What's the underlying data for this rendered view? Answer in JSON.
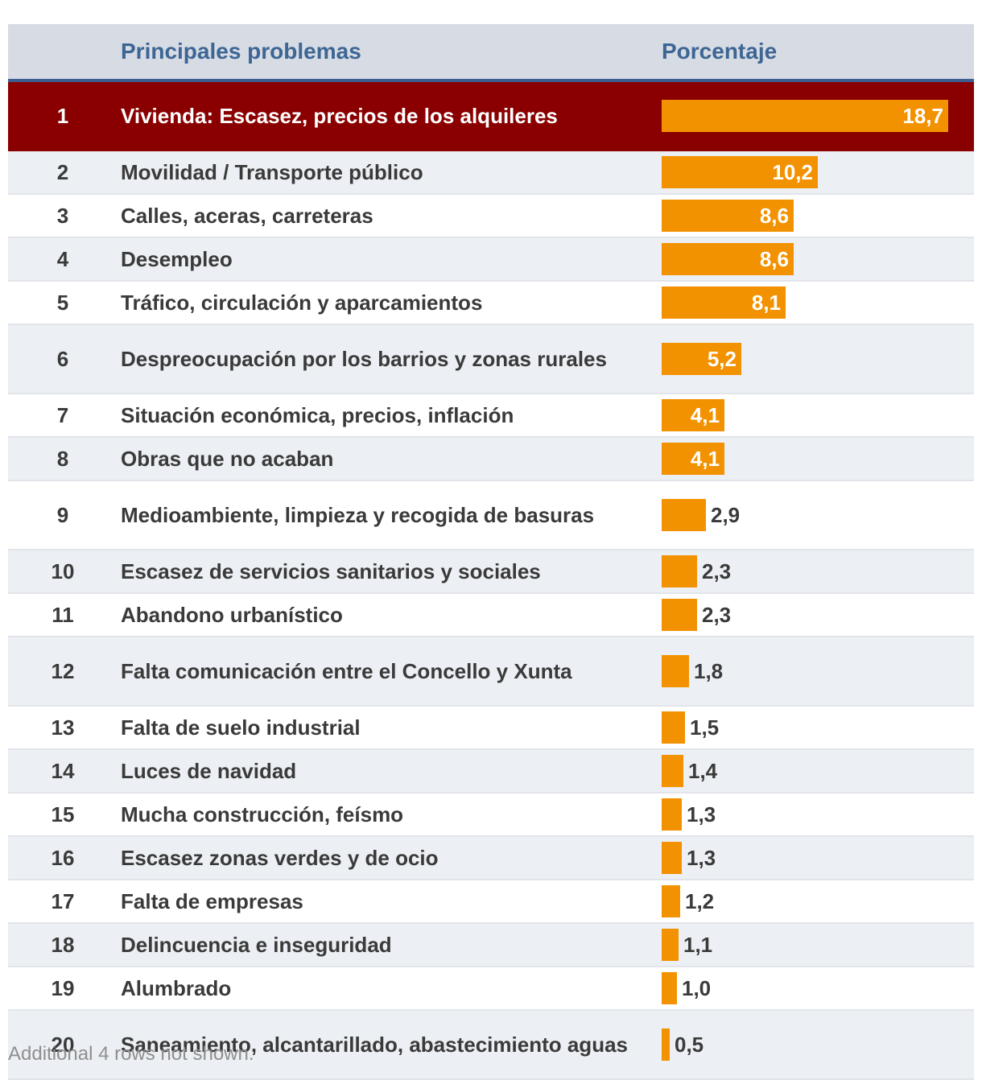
{
  "header": {
    "rank_label": "",
    "problem_label": "Principales problemas",
    "percent_label": "Porcentaje"
  },
  "footnote": "Additional 4 rows not shown.",
  "colors": {
    "bar": "#f39200",
    "highlight_row": "#8a0000",
    "header_bg": "#d6dbe4",
    "header_text": "#3d6694"
  },
  "chart_data": {
    "type": "table",
    "columns": [
      "",
      "Principales problemas",
      "Porcentaje"
    ],
    "x_max": 18.7,
    "rows": [
      {
        "rank": "1",
        "label": "Vivienda: Escasez, precios de los alquileres",
        "value": 18.7,
        "value_text": "18,7",
        "highlight": true
      },
      {
        "rank": "2",
        "label": "Movilidad / Transporte público",
        "value": 10.2,
        "value_text": "10,2"
      },
      {
        "rank": "3",
        "label": "Calles, aceras, carreteras",
        "value": 8.6,
        "value_text": "8,6"
      },
      {
        "rank": "4",
        "label": "Desempleo",
        "value": 8.6,
        "value_text": "8,6"
      },
      {
        "rank": "5",
        "label": "Tráfico, circulación y aparcamientos",
        "value": 8.1,
        "value_text": "8,1"
      },
      {
        "rank": "6",
        "label": "Despreocupación por los barrios y zonas rurales",
        "value": 5.2,
        "value_text": "5,2"
      },
      {
        "rank": "7",
        "label": "Situación económica, precios, inflación",
        "value": 4.1,
        "value_text": "4,1"
      },
      {
        "rank": "8",
        "label": "Obras que no acaban",
        "value": 4.1,
        "value_text": "4,1"
      },
      {
        "rank": "9",
        "label": "Medioambiente, limpieza y recogida de basuras",
        "value": 2.9,
        "value_text": "2,9"
      },
      {
        "rank": "10",
        "label": "Escasez de servicios sanitarios y sociales",
        "value": 2.3,
        "value_text": "2,3"
      },
      {
        "rank": "11",
        "label": "Abandono urbanístico",
        "value": 2.3,
        "value_text": "2,3"
      },
      {
        "rank": "12",
        "label": "Falta comunicación entre el Concello y Xunta",
        "value": 1.8,
        "value_text": "1,8"
      },
      {
        "rank": "13",
        "label": "Falta de suelo industrial",
        "value": 1.5,
        "value_text": "1,5"
      },
      {
        "rank": "14",
        "label": "Luces de navidad",
        "value": 1.4,
        "value_text": "1,4"
      },
      {
        "rank": "15",
        "label": "Mucha construcción, feísmo",
        "value": 1.3,
        "value_text": "1,3"
      },
      {
        "rank": "16",
        "label": "Escasez zonas verdes y de ocio",
        "value": 1.3,
        "value_text": "1,3"
      },
      {
        "rank": "17",
        "label": "Falta de empresas",
        "value": 1.2,
        "value_text": "1,2"
      },
      {
        "rank": "18",
        "label": "Delincuencia e inseguridad",
        "value": 1.1,
        "value_text": "1,1"
      },
      {
        "rank": "19",
        "label": "Alumbrado",
        "value": 1.0,
        "value_text": "1,0"
      },
      {
        "rank": "20",
        "label": "Saneamiento, alcantarillado, abastecimiento aguas",
        "value": 0.5,
        "value_text": "0,5"
      }
    ]
  }
}
